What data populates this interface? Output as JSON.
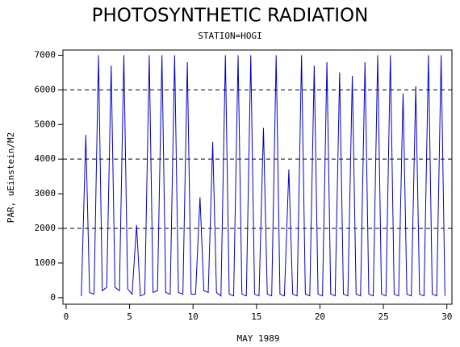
{
  "chart_data": {
    "type": "line",
    "title": "PHOTOSYNTHETIC RADIATION",
    "subtitle": "STATION=HOGI",
    "x_label": "MAY 1989",
    "y_label": "PAR, uEinstein/M2",
    "x": [
      1.2,
      1.55,
      1.85,
      2.2,
      2.55,
      2.85,
      3.2,
      3.55,
      3.85,
      4.2,
      4.55,
      4.85,
      5.2,
      5.55,
      5.85,
      6.2,
      6.55,
      6.85,
      7.2,
      7.55,
      7.85,
      8.2,
      8.55,
      8.85,
      9.2,
      9.55,
      9.85,
      10.2,
      10.55,
      10.85,
      11.2,
      11.55,
      11.85,
      12.2,
      12.55,
      12.85,
      13.2,
      13.55,
      13.85,
      14.2,
      14.55,
      14.85,
      15.2,
      15.55,
      15.85,
      16.2,
      16.55,
      16.85,
      17.2,
      17.55,
      17.85,
      18.2,
      18.55,
      18.85,
      19.2,
      19.55,
      19.85,
      20.2,
      20.55,
      20.85,
      21.2,
      21.55,
      21.85,
      22.2,
      22.55,
      22.85,
      23.2,
      23.55,
      23.85,
      24.2,
      24.55,
      24.85,
      25.2,
      25.55,
      25.85,
      26.2,
      26.55,
      26.85,
      27.2,
      27.55,
      27.85,
      28.2,
      28.55,
      28.85,
      29.2,
      29.55,
      29.85
    ],
    "series": [
      {
        "name": "PAR",
        "color": "#0000cc",
        "values": [
          50,
          4700,
          150,
          100,
          7000,
          200,
          300,
          6700,
          300,
          200,
          7000,
          250,
          100,
          2100,
          50,
          100,
          7000,
          150,
          200,
          7000,
          150,
          100,
          7000,
          150,
          100,
          6800,
          100,
          100,
          2900,
          200,
          150,
          4500,
          150,
          50,
          7000,
          100,
          50,
          7000,
          100,
          50,
          7000,
          100,
          50,
          4900,
          100,
          50,
          7000,
          100,
          50,
          3700,
          100,
          50,
          7000,
          100,
          50,
          6700,
          100,
          50,
          6800,
          100,
          50,
          6500,
          100,
          50,
          6400,
          100,
          50,
          6800,
          100,
          50,
          7000,
          100,
          50,
          7000,
          100,
          50,
          5900,
          100,
          50,
          6100,
          100,
          50,
          7000,
          100,
          50,
          7000,
          50
        ]
      }
    ],
    "xlim": [
      -0.25,
      30.4
    ],
    "ylim": [
      -190,
      7150
    ],
    "xticks": [
      0,
      5,
      10,
      15,
      20,
      25,
      30
    ],
    "yticks": [
      0,
      1000,
      2000,
      3000,
      4000,
      5000,
      6000,
      7000
    ],
    "reference_lines": [
      2000,
      4000,
      6000
    ]
  }
}
